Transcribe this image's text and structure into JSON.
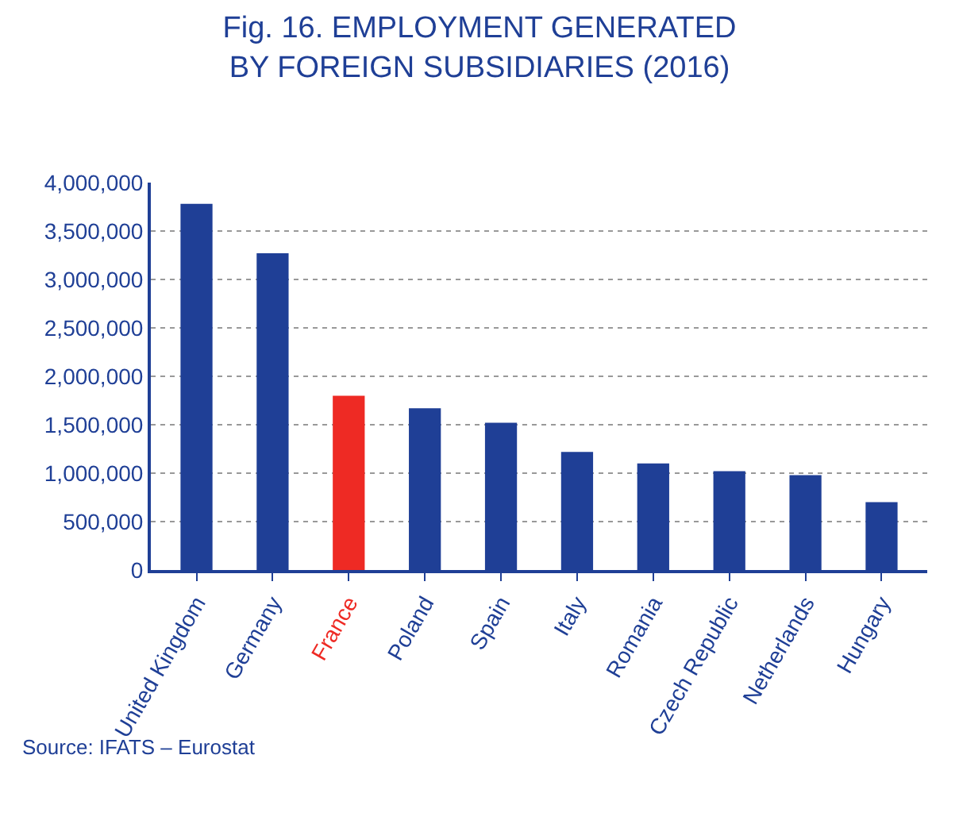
{
  "chart_data": {
    "type": "bar",
    "title": "Fig. 16. EMPLOYMENT GENERATED\nBY FOREIGN SUBSIDIARIES (2016)",
    "categories": [
      "United Kingdom",
      "Germany",
      "France",
      "Poland",
      "Spain",
      "Italy",
      "Romania",
      "Czech Republic",
      "Netherlands",
      "Hungary"
    ],
    "values": [
      3780000,
      3270000,
      1800000,
      1670000,
      1520000,
      1220000,
      1100000,
      1020000,
      980000,
      700000
    ],
    "colors": [
      "#1f3f96",
      "#1f3f96",
      "#ee2a24",
      "#1f3f96",
      "#1f3f96",
      "#1f3f96",
      "#1f3f96",
      "#1f3f96",
      "#1f3f96",
      "#1f3f96"
    ],
    "ylim": [
      0,
      4000000
    ],
    "yticks": [
      {
        "value": 0,
        "label": "0"
      },
      {
        "value": 500000,
        "label": "500,000"
      },
      {
        "value": 1000000,
        "label": "1,000,000"
      },
      {
        "value": 1500000,
        "label": "1,500,000"
      },
      {
        "value": 2000000,
        "label": "2,000,000"
      },
      {
        "value": 2500000,
        "label": "2,500,000"
      },
      {
        "value": 3000000,
        "label": "3,000,000"
      },
      {
        "value": 3500000,
        "label": "3,500,000"
      },
      {
        "value": 4000000,
        "label": "4,000,000"
      }
    ],
    "grid": "y",
    "annotations": [
      "Source: IFATS – Eurostat"
    ]
  }
}
